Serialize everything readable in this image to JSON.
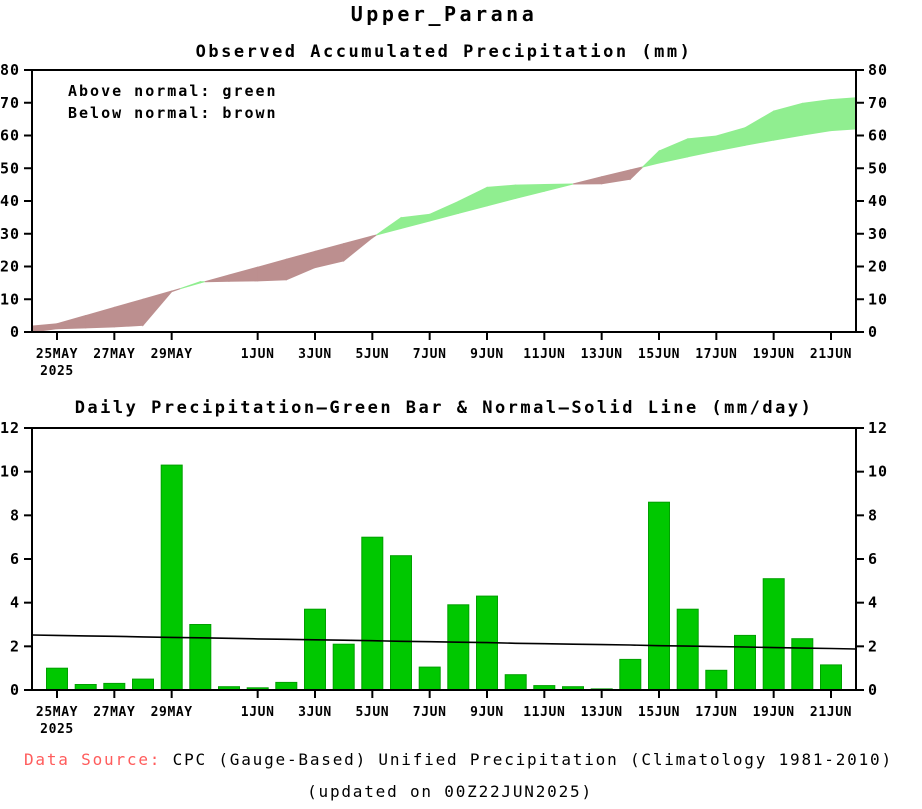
{
  "page": {
    "title": "Upper_Parana",
    "footer": {
      "source_label": "Data Source:",
      "source_label_color": "#FF5C5C",
      "source_text": "CPC (Gauge-Based) Unified Precipitation (Climatology 1981-2010)",
      "updated_text": "(updated on 00Z22JUN2025)"
    }
  },
  "chart_data": [
    {
      "type": "area",
      "title": "Observed Accumulated Precipitation (mm)",
      "xlabel": "",
      "ylabel": "",
      "ylim": [
        0,
        80
      ],
      "yticks": [
        0,
        10,
        20,
        30,
        40,
        50,
        60,
        70,
        80
      ],
      "grid": false,
      "legend": [
        "Above normal: green",
        "Below normal: brown"
      ],
      "legend_position": "top-left",
      "x_year_label": "2025",
      "x_tick_labels": [
        "25MAY",
        "27MAY",
        "29MAY",
        "1JUN",
        "3JUN",
        "5JUN",
        "7JUN",
        "9JUN",
        "11JUN",
        "13JUN",
        "15JUN",
        "17JUN",
        "19JUN",
        "21JUN"
      ],
      "x_dates": [
        "25MAY",
        "26MAY",
        "27MAY",
        "28MAY",
        "29MAY",
        "30MAY",
        "31MAY",
        "1JUN",
        "2JUN",
        "3JUN",
        "4JUN",
        "5JUN",
        "6JUN",
        "7JUN",
        "8JUN",
        "9JUN",
        "10JUN",
        "11JUN",
        "12JUN",
        "13JUN",
        "14JUN",
        "15JUN",
        "16JUN",
        "17JUN",
        "18JUN",
        "19JUN",
        "20JUN",
        "21JUN"
      ],
      "observed_accumulated_mm": [
        1.0,
        1.25,
        1.55,
        2.05,
        12.35,
        15.35,
        15.5,
        15.6,
        15.95,
        19.65,
        21.75,
        28.75,
        34.9,
        35.95,
        39.85,
        44.15,
        44.85,
        45.05,
        45.2,
        45.25,
        46.65,
        55.25,
        58.95,
        59.85,
        62.35,
        67.45,
        69.8,
        70.95
      ],
      "normal_accumulated_mm": [
        2.5,
        5.0,
        7.5,
        10.0,
        12.5,
        15.0,
        17.4,
        19.8,
        22.2,
        24.6,
        27.0,
        29.3,
        31.6,
        33.9,
        36.2,
        38.5,
        40.8,
        43.0,
        45.2,
        47.4,
        49.5,
        51.6,
        53.5,
        55.3,
        57.0,
        58.6,
        60.1,
        61.5
      ],
      "edge_values": {
        "left": {
          "observed": 0.0,
          "normal": 1.8
        },
        "right": {
          "observed": 71.5,
          "normal": 62.0
        }
      },
      "colors": {
        "above_normal": "#90EE90",
        "below_normal": "#BC8F8F"
      }
    },
    {
      "type": "bar",
      "title": "Daily Precipitation–Green Bar & Normal–Solid Line (mm/day)",
      "xlabel": "",
      "ylabel": "",
      "ylim": [
        0,
        12
      ],
      "yticks": [
        0,
        2,
        4,
        6,
        8,
        10,
        12
      ],
      "grid": false,
      "x_year_label": "2025",
      "x_tick_labels": [
        "25MAY",
        "27MAY",
        "29MAY",
        "1JUN",
        "3JUN",
        "5JUN",
        "7JUN",
        "9JUN",
        "11JUN",
        "13JUN",
        "15JUN",
        "17JUN",
        "19JUN",
        "21JUN"
      ],
      "x_dates": [
        "25MAY",
        "26MAY",
        "27MAY",
        "28MAY",
        "29MAY",
        "30MAY",
        "31MAY",
        "1JUN",
        "2JUN",
        "3JUN",
        "4JUN",
        "5JUN",
        "6JUN",
        "7JUN",
        "8JUN",
        "9JUN",
        "10JUN",
        "11JUN",
        "12JUN",
        "13JUN",
        "14JUN",
        "15JUN",
        "16JUN",
        "17JUN",
        "18JUN",
        "19JUN",
        "20JUN",
        "21JUN"
      ],
      "daily_precip_mm": [
        1.0,
        0.25,
        0.3,
        0.5,
        10.3,
        3.0,
        0.15,
        0.1,
        0.35,
        3.7,
        2.1,
        7.0,
        6.15,
        1.05,
        3.9,
        4.3,
        0.7,
        0.2,
        0.15,
        0.05,
        1.4,
        8.6,
        3.7,
        0.9,
        2.5,
        5.1,
        2.35,
        1.15
      ],
      "normal_mm_per_day": [
        2.5,
        2.48,
        2.46,
        2.43,
        2.41,
        2.39,
        2.37,
        2.34,
        2.32,
        2.3,
        2.28,
        2.26,
        2.23,
        2.21,
        2.19,
        2.17,
        2.14,
        2.12,
        2.1,
        2.08,
        2.06,
        2.03,
        2.01,
        1.99,
        1.97,
        1.94,
        1.92,
        1.9
      ],
      "edge_values": {
        "left": 2.52,
        "right": 1.88
      },
      "colors": {
        "bar": "#00C800",
        "bar_edge": "#00A000",
        "line": "#000000"
      }
    }
  ]
}
